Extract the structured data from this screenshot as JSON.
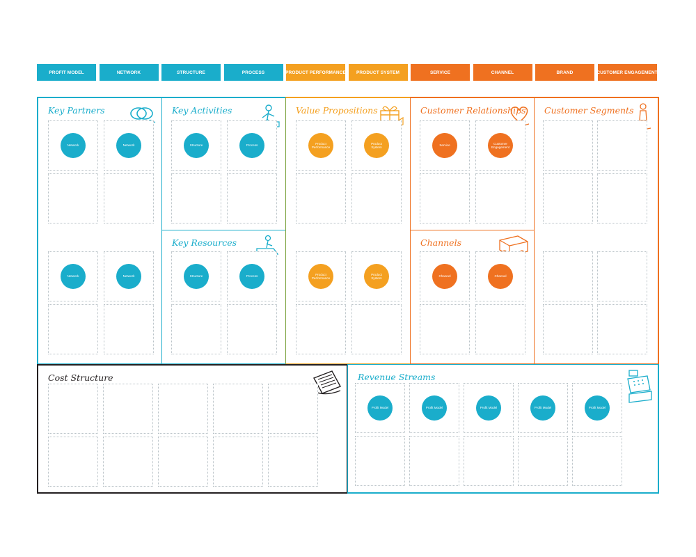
{
  "colors": {
    "blue": "#1aadcb",
    "light_orange": "#f4a020",
    "orange": "#ef7120",
    "olive_divider": "#7ba23e",
    "black": "#231f20"
  },
  "tabs": [
    {
      "label": "PROFIT MODEL",
      "color": "#1aadcb"
    },
    {
      "label": "NETWORK",
      "color": "#1aadcb"
    },
    {
      "label": "STRUCTURE",
      "color": "#1aadcb"
    },
    {
      "label": "PROCESS",
      "color": "#1aadcb"
    },
    {
      "label": "PRODUCT PERFORMANCE",
      "color": "#f4a020"
    },
    {
      "label": "PRODUCT SYSTEM",
      "color": "#f4a020"
    },
    {
      "label": "SERVICE",
      "color": "#ef7120"
    },
    {
      "label": "CHANNEL",
      "color": "#ef7120"
    },
    {
      "label": "BRAND",
      "color": "#ef7120"
    },
    {
      "label": "CUSTOMER ENGAGEMENT",
      "color": "#ef7120"
    }
  ],
  "blocks": {
    "key_partners": {
      "title": "Key Partners",
      "icon": "rings-icon"
    },
    "key_activities": {
      "title": "Key Activities",
      "icon": "worker-icon"
    },
    "key_resources": {
      "title": "Key Resources",
      "icon": "loader-icon"
    },
    "value_propositions": {
      "title": "Value Propositions",
      "icon": "gift-icon"
    },
    "customer_relationships": {
      "title": "Customer Relationships",
      "icon": "heart-icon"
    },
    "channels": {
      "title": "Channels",
      "icon": "truck-icon"
    },
    "customer_segments": {
      "title": "Customer Segments",
      "icon": "person-icon"
    },
    "cost_structure": {
      "title": "Cost Structure",
      "icon": "receipt-icon"
    },
    "revenue_streams": {
      "title": "Revenue Streams",
      "icon": "cash-register-icon"
    }
  },
  "circles": {
    "network": "Network",
    "structure": "Structure",
    "process": "Process",
    "product_performance": "Product Performance",
    "product_system": "Product System",
    "service": "Service",
    "customer_engagement": "Customer Engagement",
    "channel": "Channel",
    "profit_model": "Profit Model"
  }
}
